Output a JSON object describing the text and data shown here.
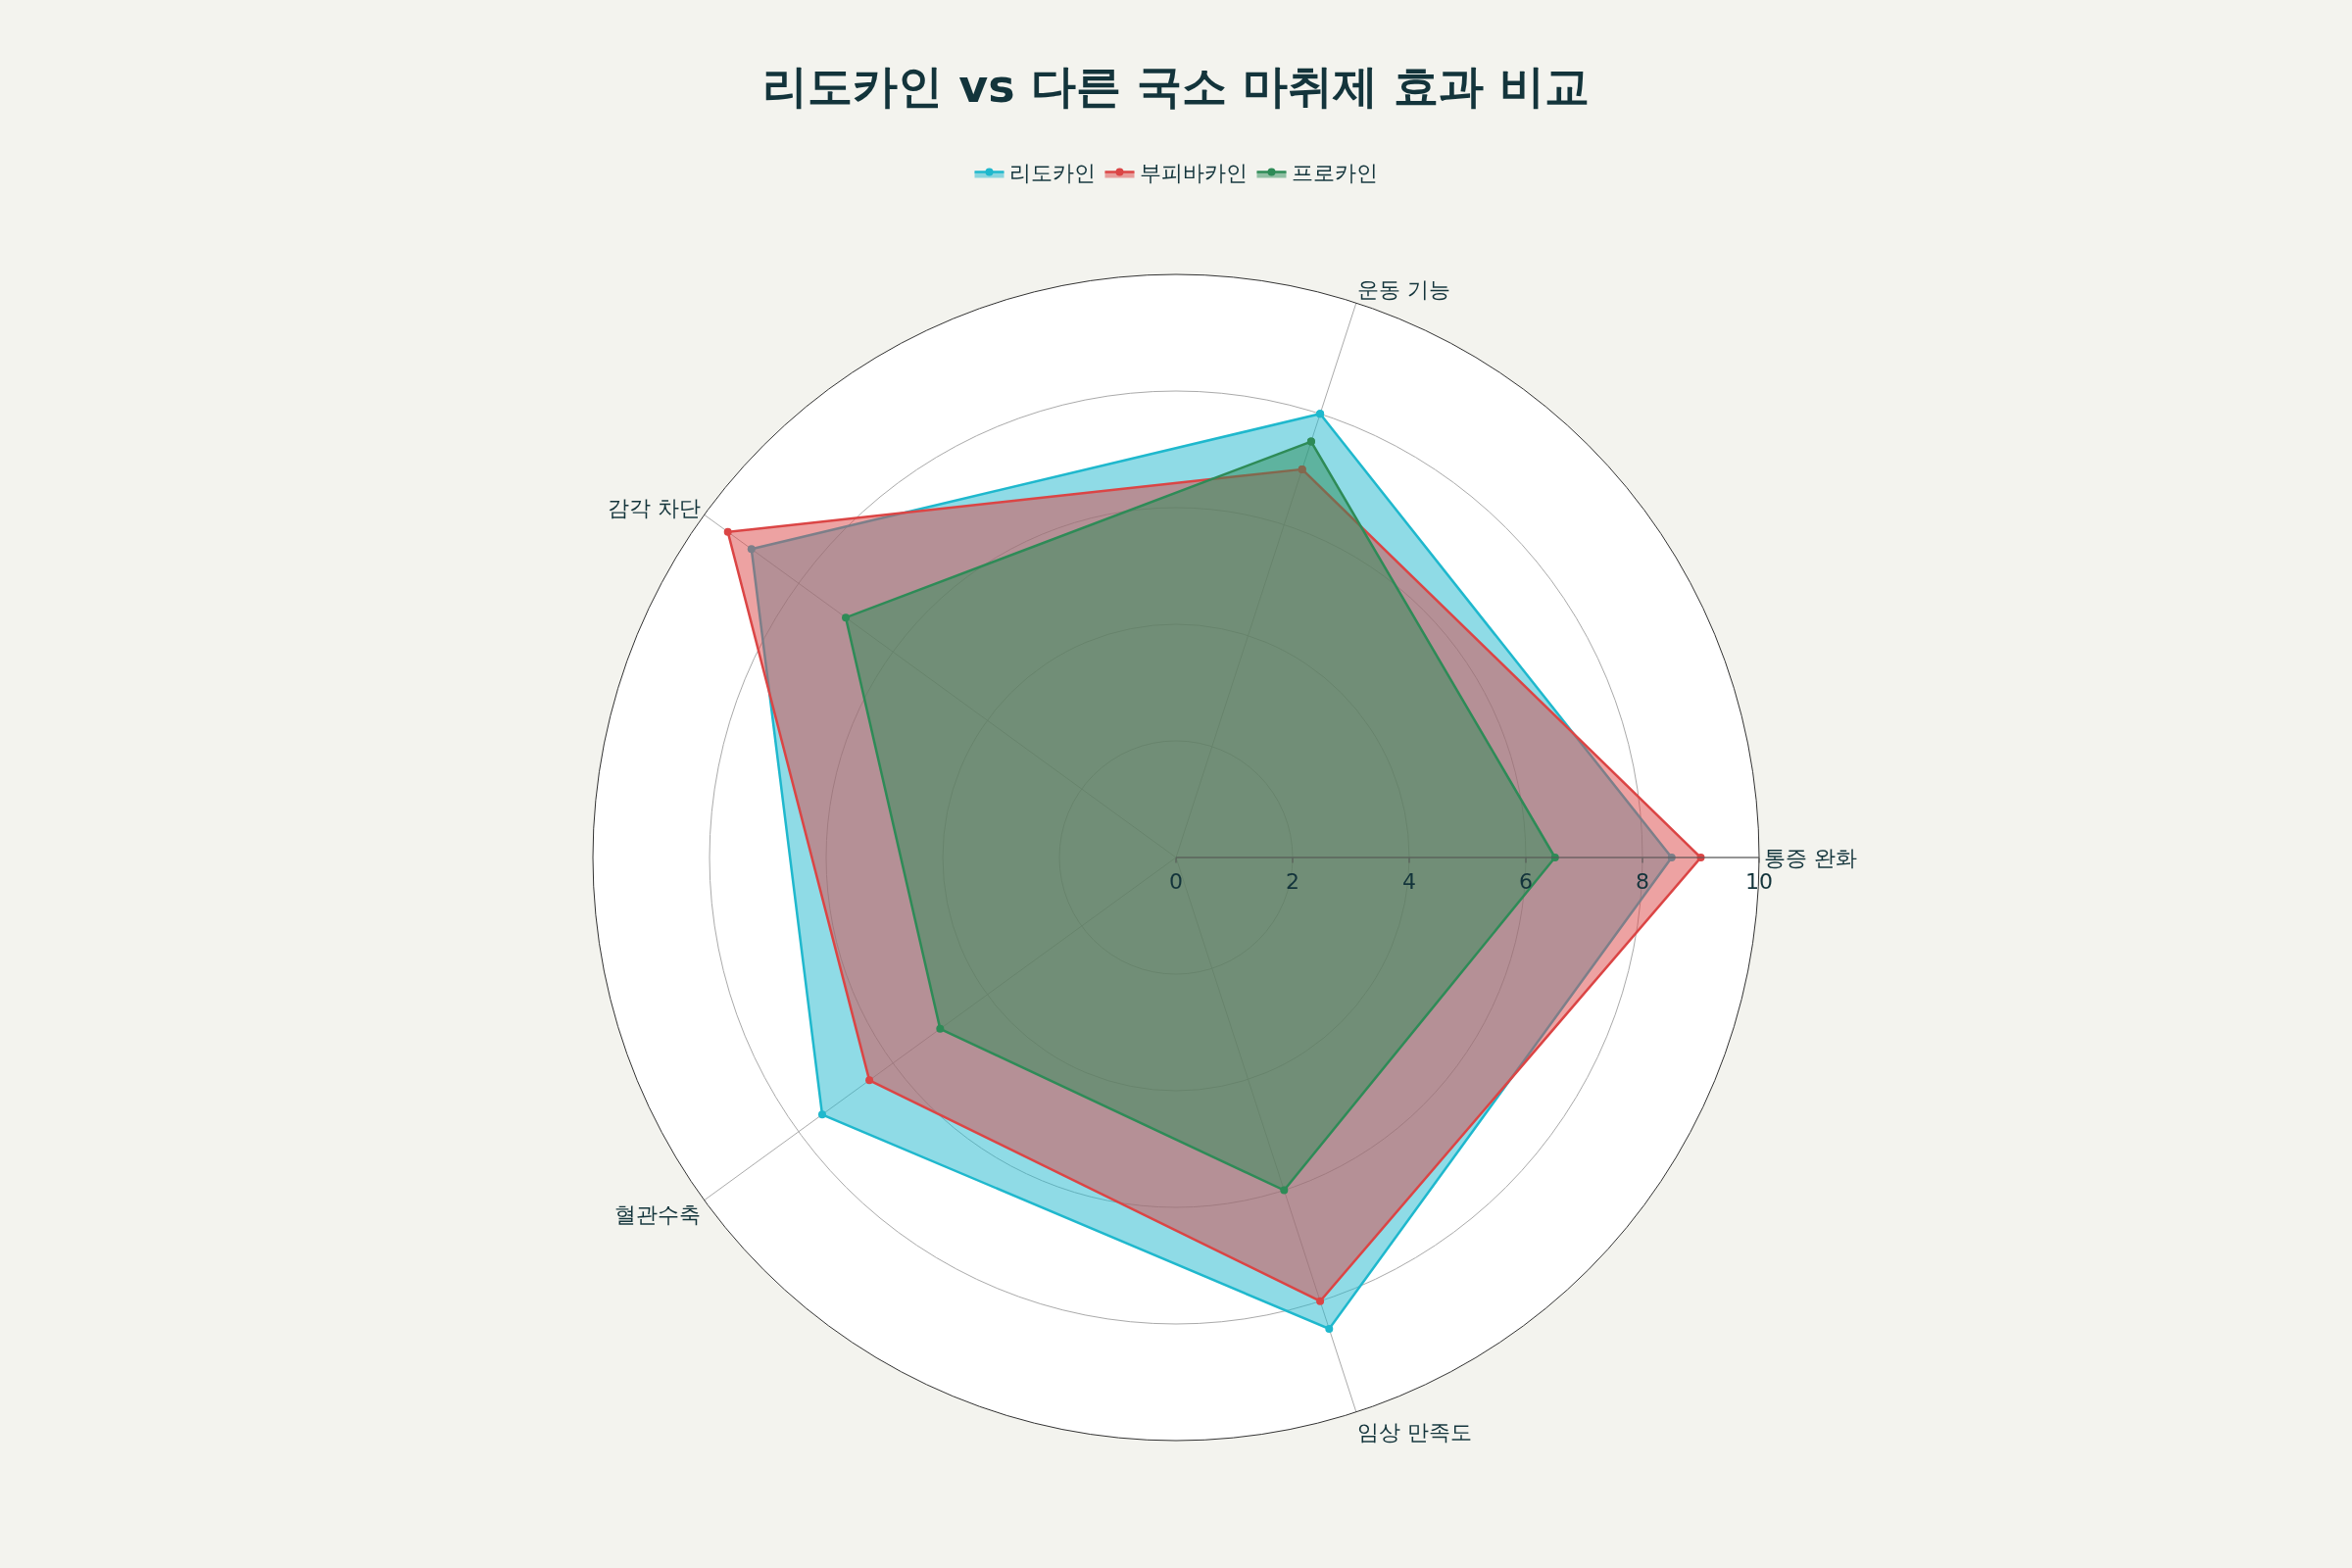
{
  "chart_data": {
    "type": "radar",
    "title": "리도카인 vs 다른 국소 마취제 효과 비교",
    "categories": [
      "운동 기능",
      "통증 완화",
      "임상 만족도",
      "혈관수축",
      "감각 차단"
    ],
    "series": [
      {
        "name": "리도카인",
        "color": "#1fb8cd",
        "values": [
          8.0,
          8.5,
          8.5,
          7.5,
          9.0
        ]
      },
      {
        "name": "부피바카인",
        "color": "#db4545",
        "values": [
          7.0,
          9.0,
          8.0,
          6.5,
          9.5
        ]
      },
      {
        "name": "프로카인",
        "color": "#2e8b57",
        "values": [
          7.5,
          6.5,
          6.0,
          5.0,
          7.0
        ]
      }
    ],
    "ylim": [
      0,
      10
    ],
    "yticks": [
      0,
      2,
      4,
      6,
      8,
      10
    ],
    "grid": true,
    "legend": "top",
    "marker": "circle",
    "line_style": "solid"
  }
}
